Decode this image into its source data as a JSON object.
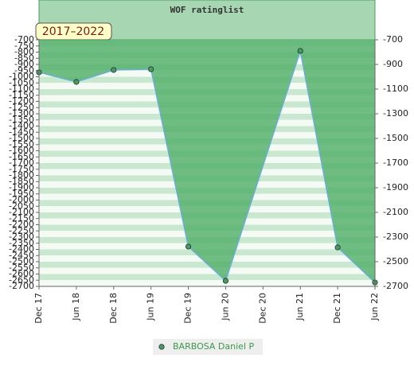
{
  "chart_data": {
    "type": "line",
    "title": "WOF ratinglist",
    "badge": "2017–2022",
    "categories": [
      "Dec 17",
      "Jun 18",
      "Dec 18",
      "Jun 19",
      "Dec 19",
      "Jun 20",
      "Dec 20",
      "Jun 21",
      "Dec 21",
      "Jun 22"
    ],
    "series": [
      {
        "name": "BARBOSA Daniel P",
        "line_color": "#6aaed6",
        "fill_color": "#4fae66",
        "marker_color": "#4a9a5a",
        "legend_text_color": "#3a9a4a",
        "x": [
          "Dec 17",
          "Jun 18",
          "Dec 18",
          "Jun 19",
          "Dec 19",
          "Jun 20",
          "Jun 21",
          "Dec 21",
          "Jun 22"
        ],
        "values": [
          -964,
          -1042,
          -945,
          -939,
          -2377,
          -2655,
          -790,
          -2384,
          -2668
        ]
      }
    ],
    "ylim": [
      -2700,
      -700
    ],
    "yticks": [
      -700,
      -750,
      -800,
      -850,
      -900,
      -950,
      -1000,
      -1050,
      -1100,
      -1150,
      -1200,
      -1250,
      -1300,
      -1350,
      -1400,
      -1450,
      -1500,
      -1550,
      -1600,
      -1650,
      -1700,
      -1750,
      -1800,
      -1850,
      -1900,
      -1950,
      -2000,
      -2050,
      -2100,
      -2150,
      -2200,
      -2250,
      -2300,
      -2350,
      -2400,
      -2450,
      -2500,
      -2550,
      -2600,
      -2650,
      -2700
    ],
    "y2lim": [
      -2700,
      -700
    ],
    "y2ticks": [
      -700,
      -900,
      -1100,
      -1300,
      -1500,
      -1700,
      -1900,
      -2100,
      -2300,
      -2500,
      -2700
    ]
  }
}
